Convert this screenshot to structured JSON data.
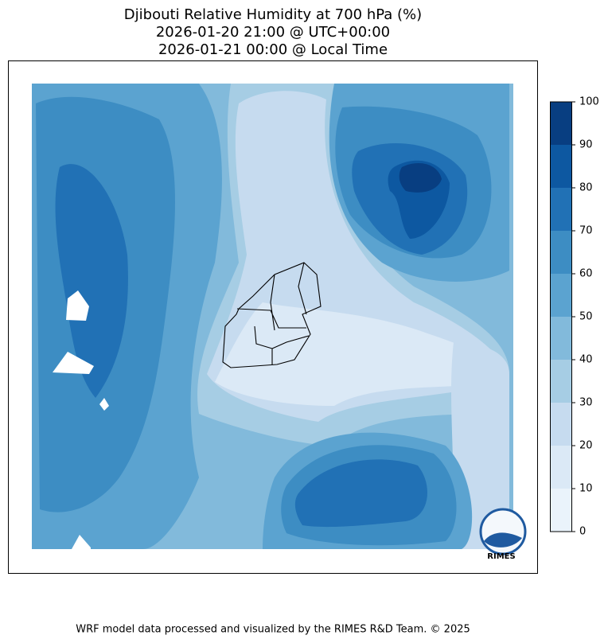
{
  "title": [
    "Djibouti Relative Humidity at 700 hPa (%)",
    "2026-01-20 21:00 @ UTC+00:00",
    "2026-01-21 00:00 @ Local Time"
  ],
  "colorbar": {
    "ticks": [
      0,
      10,
      20,
      30,
      40,
      50,
      60,
      70,
      80,
      90,
      100
    ],
    "colors": [
      "#eaf3fb",
      "#dbe9f6",
      "#c6dbef",
      "#a6cde4",
      "#82badb",
      "#5ba3d0",
      "#3d8dc3",
      "#2171b5",
      "#0d58a1",
      "#083e81"
    ]
  },
  "logo": "RIMES",
  "footer": "WRF model data processed and visualized by the RIMES R&D Team. © 2025"
}
